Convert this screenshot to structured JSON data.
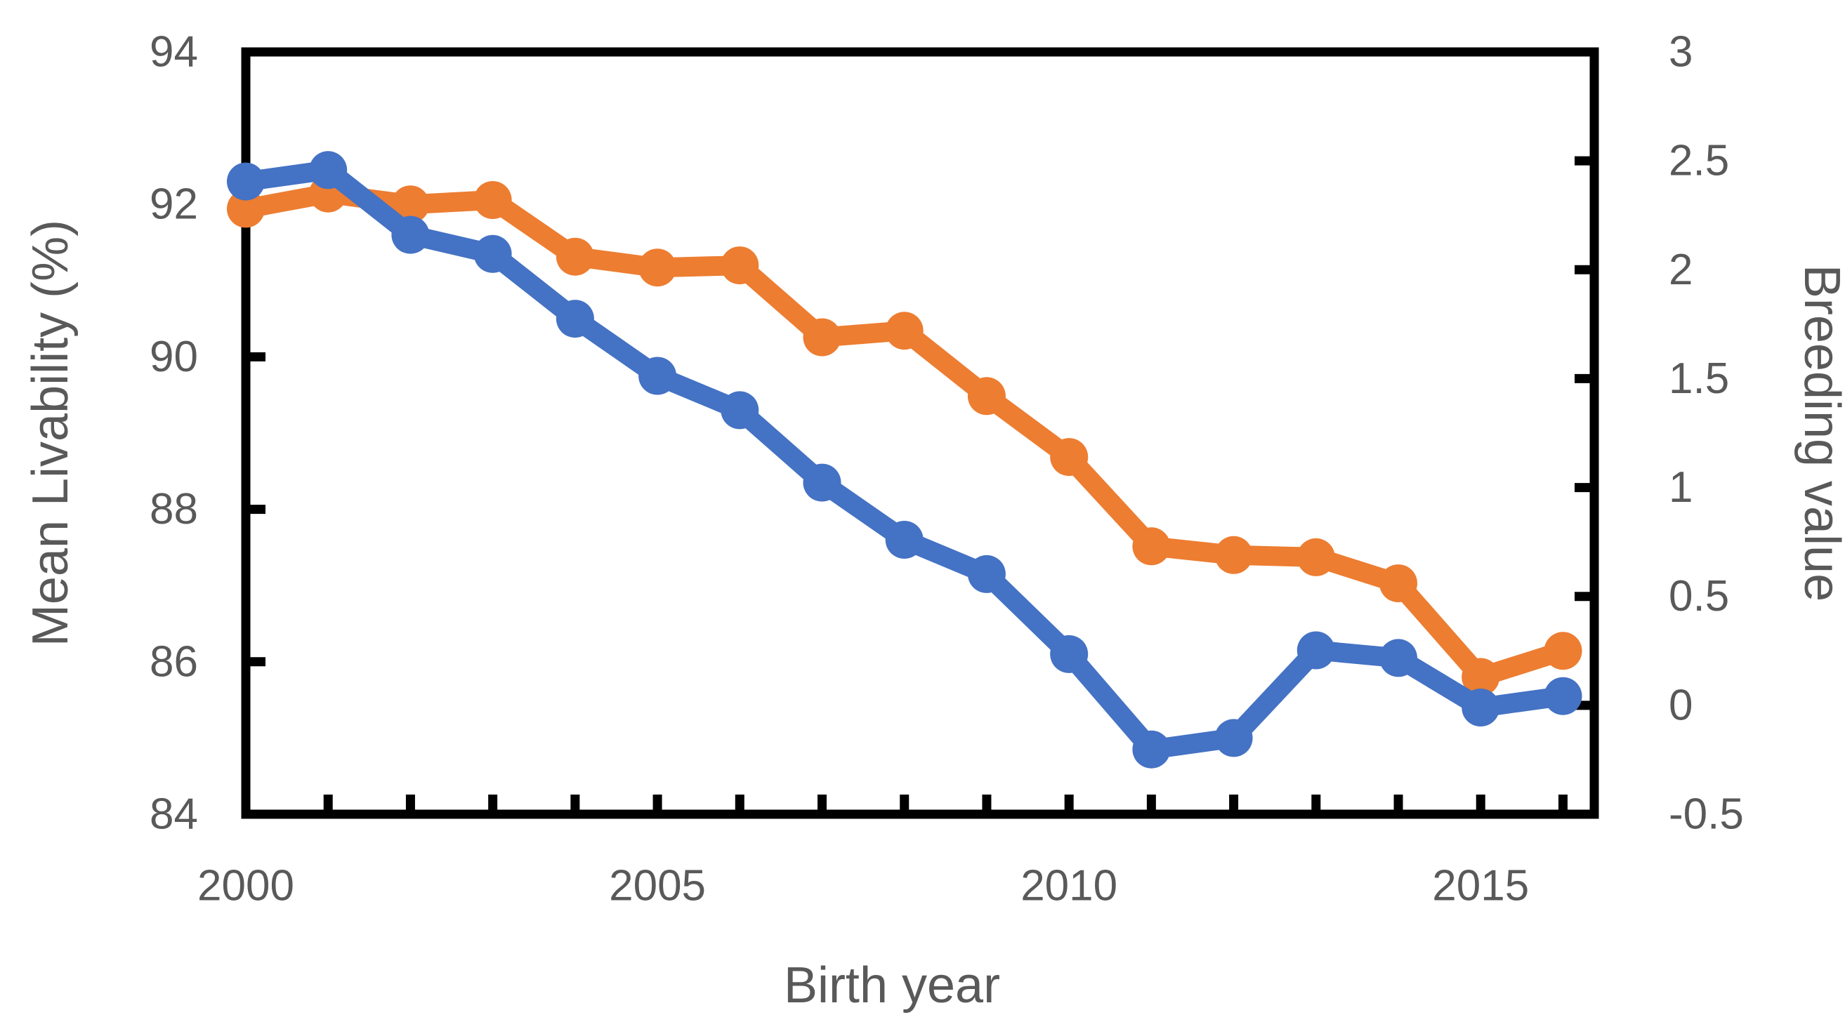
{
  "app": {
    "background": "#ffffff"
  },
  "chart_data": {
    "type": "line",
    "title": "",
    "xlabel": "Birth year",
    "ylabel_left": "Mean Livability (%)",
    "ylabel_right": "Breeding value",
    "x": [
      2000,
      2001,
      2002,
      2003,
      2004,
      2005,
      2006,
      2007,
      2008,
      2009,
      2010,
      2011,
      2012,
      2013,
      2014,
      2015,
      2016
    ],
    "series": [
      {
        "name": "Mean Livability (%)",
        "axis": "left",
        "color": "#4472C4",
        "values": [
          92.3,
          92.45,
          91.6,
          91.35,
          90.5,
          89.75,
          89.3,
          88.35,
          87.6,
          87.15,
          86.1,
          84.85,
          85.0,
          86.15,
          86.05,
          85.4,
          85.55
        ]
      },
      {
        "name": "Breeding value",
        "axis": "right",
        "color": "#ED7D31",
        "values": [
          2.28,
          2.35,
          2.3,
          2.32,
          2.06,
          2.01,
          2.02,
          1.69,
          1.72,
          1.42,
          1.14,
          0.73,
          0.69,
          0.68,
          0.56,
          0.13,
          0.25
        ]
      }
    ],
    "x_axis": {
      "min": 2000,
      "max": 2016.38,
      "tick_interval": 1,
      "tick_label_values": [
        2000,
        2005,
        2010,
        2015
      ],
      "tick_labels": [
        "2000",
        "2005",
        "2010",
        "2015"
      ]
    },
    "left_axis": {
      "min": 84,
      "max": 94,
      "tick_interval": 2,
      "tick_label_values": [
        84,
        86,
        88,
        90,
        92,
        94
      ],
      "tick_labels": [
        "84",
        "86",
        "88",
        "90",
        "92",
        "94"
      ]
    },
    "right_axis": {
      "min": -0.5,
      "max": 3,
      "tick_interval": 0.5,
      "tick_label_values": [
        -0.5,
        0,
        0.5,
        1,
        1.5,
        2,
        2.5,
        3
      ],
      "tick_labels": [
        "-0.5",
        "0",
        "0.5",
        "1",
        "1.5",
        "2",
        "2.5",
        "3"
      ]
    },
    "grid": false,
    "legend": "none",
    "marker": "circle",
    "frame_color": "#000000",
    "label_color": "#595959"
  }
}
